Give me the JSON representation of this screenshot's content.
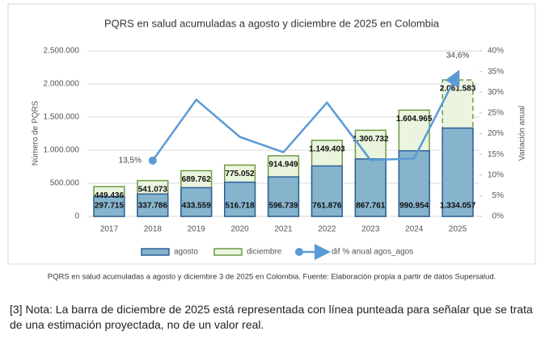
{
  "chart_data": {
    "type": "bar",
    "title": "PQRS en salud acumuladas a agosto y diciembre de 2025 en Colombia",
    "y_label": "Número de PQRS",
    "y2_label": "Variación anual",
    "categories": [
      "2017",
      "2018",
      "2019",
      "2020",
      "2021",
      "2022",
      "2023",
      "2024",
      "2025"
    ],
    "ylim": [
      0,
      2500000
    ],
    "yticks": [
      {
        "value": 0,
        "label": "0"
      },
      {
        "value": 500000,
        "label": "500.000"
      },
      {
        "value": 1000000,
        "label": "1.000.000"
      },
      {
        "value": 1500000,
        "label": "1.500.000"
      },
      {
        "value": 2000000,
        "label": "2.000.000"
      },
      {
        "value": 2500000,
        "label": "2.500.000"
      }
    ],
    "y2lim": [
      0,
      40
    ],
    "y2ticks": [
      {
        "value": 0,
        "label": "0%"
      },
      {
        "value": 5,
        "label": "5%"
      },
      {
        "value": 10,
        "label": "10%"
      },
      {
        "value": 15,
        "label": "15%"
      },
      {
        "value": 20,
        "label": "20%"
      },
      {
        "value": 25,
        "label": "25%"
      },
      {
        "value": 30,
        "label": "30%"
      },
      {
        "value": 35,
        "label": "35%"
      },
      {
        "value": 40,
        "label": "40%"
      }
    ],
    "series": [
      {
        "name": "diciembre",
        "type": "bar",
        "color": "#eaf4de",
        "stroke": "#6e9a45",
        "values": [
          449436,
          541073,
          689762,
          775052,
          914949,
          1149403,
          1300732,
          1604965,
          2061583
        ],
        "value_labels": [
          "449.436",
          "541.073",
          "689.762",
          "775.052",
          "914.949",
          "1.149.403",
          "1.300.732",
          "1.604.965",
          "2.061.583"
        ],
        "dashed": [
          false,
          false,
          false,
          false,
          false,
          false,
          false,
          false,
          true
        ]
      },
      {
        "name": "agosto",
        "type": "bar",
        "color": "#86b4cc",
        "stroke": "#2f5f9a",
        "values": [
          297715,
          337786,
          433559,
          516718,
          596739,
          761876,
          867761,
          990954,
          1334057
        ],
        "value_labels": [
          "297.715",
          "337.786",
          "433.559",
          "516.718",
          "596.739",
          "761.876",
          "867.761",
          "990.954",
          "1.334.057"
        ]
      },
      {
        "name": "dif % anual agos_agos",
        "type": "line",
        "axis": "y2",
        "color": "#5b9bd5",
        "values": [
          null,
          13.5,
          28.2,
          19.2,
          15.5,
          27.5,
          13.6,
          14.0,
          34.6
        ],
        "value_labels": [
          null,
          "13,5%",
          null,
          null,
          null,
          null,
          null,
          null,
          "34,6%"
        ]
      }
    ],
    "legend_order": [
      1,
      0,
      2
    ],
    "caption": "PQRS en salud acumuladas a agosto y diciembre 3 de 2025 en Colombia.  Fuente: Elaboración propia a partir de datos Supersalud."
  },
  "note": "[3] Nota: La barra de diciembre de 2025 está representada con línea punteada para señalar que se trata de una estimación proyectada, no de un valor real."
}
